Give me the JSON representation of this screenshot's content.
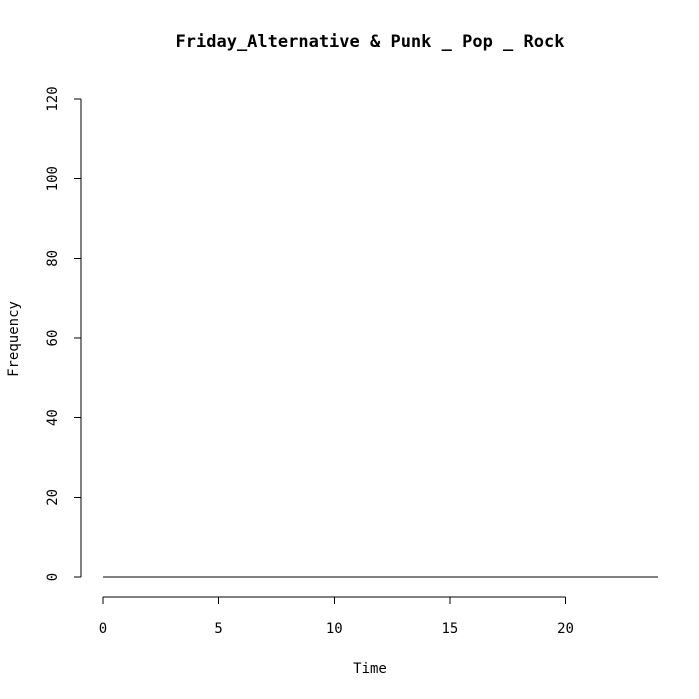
{
  "chart_data": {
    "type": "line",
    "title": "Friday_Alternative & Punk _ Pop _ Rock",
    "xlabel": "Time",
    "ylabel": "Frequency",
    "xlim": [
      0,
      24
    ],
    "ylim": [
      0,
      120
    ],
    "x_ticks": [
      0,
      5,
      10,
      15,
      20
    ],
    "y_ticks": [
      0,
      20,
      40,
      60,
      80,
      100,
      120
    ],
    "grid": false,
    "series": [
      {
        "x": [
          0,
          1,
          2,
          3,
          4,
          5,
          6,
          7,
          8,
          9,
          10,
          11,
          12,
          13,
          14,
          15,
          16,
          17,
          18,
          19,
          20,
          21,
          22,
          23,
          24
        ],
        "values": [
          0,
          0,
          0,
          0,
          0,
          0,
          0,
          0,
          0,
          0,
          0,
          0,
          0,
          0,
          0,
          0,
          0,
          0,
          0,
          0,
          0,
          0,
          0,
          0,
          0
        ],
        "color": "#000000"
      }
    ]
  }
}
